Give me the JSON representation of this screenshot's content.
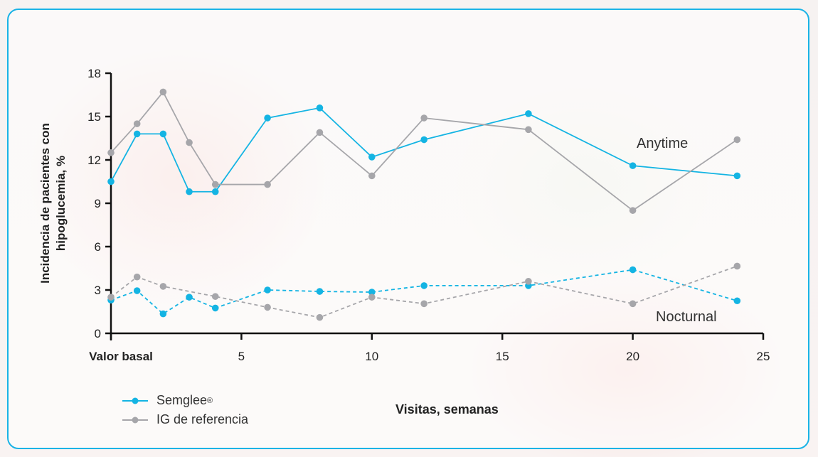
{
  "chart_data": {
    "type": "line",
    "xlabel": "Visitas, semanas",
    "ylabel_line1": "Incidencia de pacientes con",
    "ylabel_line2": "hipoglucemia, %",
    "xlim": [
      0,
      25
    ],
    "ylim": [
      0,
      18
    ],
    "xticks": [
      0,
      5,
      10,
      15,
      20,
      25
    ],
    "xtick_labels": [
      "Valor basal",
      "5",
      "10",
      "15",
      "20",
      "25"
    ],
    "yticks": [
      0,
      3,
      6,
      9,
      12,
      15,
      18
    ],
    "ytick_labels": [
      "0",
      "3",
      "6",
      "9",
      "12",
      "15",
      "18"
    ],
    "x": [
      0,
      1,
      2,
      3,
      4,
      6,
      8,
      10,
      12,
      16,
      20,
      24
    ],
    "series": [
      {
        "name": "Semglee",
        "group": "Anytime",
        "color": "#14b4e3",
        "dashed": false,
        "values": [
          10.5,
          13.8,
          13.8,
          9.8,
          9.8,
          14.9,
          15.6,
          12.2,
          13.4,
          15.2,
          11.6,
          10.9
        ]
      },
      {
        "name": "IG de referencia",
        "group": "Anytime",
        "color": "#a6a6aa",
        "dashed": false,
        "values": [
          12.5,
          14.5,
          16.7,
          13.2,
          10.3,
          10.3,
          13.9,
          10.9,
          14.9,
          14.1,
          8.5,
          13.4
        ]
      },
      {
        "name": "Semglee",
        "group": "Nocturnal",
        "color": "#14b4e3",
        "dashed": true,
        "values": [
          2.3,
          2.95,
          1.35,
          2.5,
          1.75,
          3.0,
          2.9,
          2.85,
          3.3,
          3.3,
          4.4,
          2.25
        ]
      },
      {
        "name": "IG de referencia",
        "group": "Nocturnal",
        "color": "#a6a6aa",
        "dashed": true,
        "values": [
          2.5,
          3.9,
          3.25,
          null,
          2.55,
          1.8,
          1.1,
          2.5,
          2.05,
          3.6,
          2.05,
          4.65
        ]
      }
    ],
    "annotations": [
      "Anytime",
      "Nocturnal"
    ],
    "legend": [
      {
        "label": "Semglee",
        "sup": "®",
        "color": "#14b4e3"
      },
      {
        "label": "IG de referencia",
        "sup": "",
        "color": "#a6a6aa"
      }
    ],
    "legend_position": "bottom-left",
    "grid": false
  }
}
